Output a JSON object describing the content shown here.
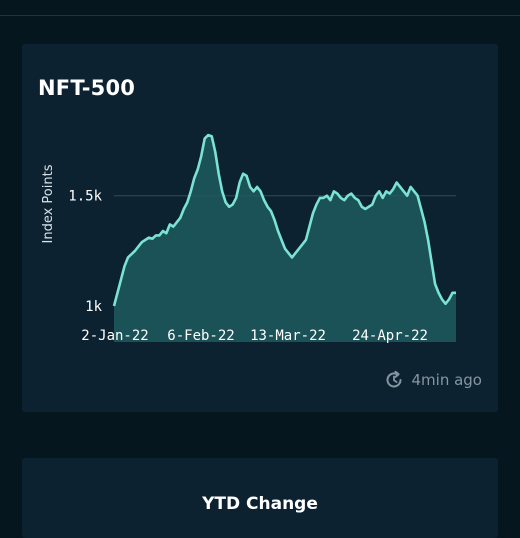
{
  "card": {
    "title": "NFT-500",
    "updated_text": "4min ago",
    "icon": "refresh-clock-icon"
  },
  "ytd_card": {
    "title": "YTD Change"
  },
  "colors": {
    "background": "#06161f",
    "card": "#0c2230",
    "line": "#7be3d6",
    "area": "#1f5a5e",
    "grid": "#294552"
  },
  "chart_data": {
    "type": "area",
    "ylabel": "Index Points",
    "ylim": [
      1000,
      1780
    ],
    "y_ticks": [
      {
        "value": 1000,
        "label": "1k"
      },
      {
        "value": 1500,
        "label": "1.5k"
      }
    ],
    "x_tick_labels": [
      "2-Jan-22",
      "6-Feb-22",
      "13-Mar-22",
      "24-Apr-22"
    ],
    "series": [
      {
        "values": [
          1000,
          1060,
          1120,
          1180,
          1220,
          1235,
          1250,
          1270,
          1290,
          1300,
          1310,
          1305,
          1320,
          1320,
          1340,
          1330,
          1370,
          1360,
          1380,
          1400,
          1440,
          1470,
          1520,
          1580,
          1620,
          1680,
          1760,
          1775,
          1770,
          1700,
          1600,
          1520,
          1470,
          1450,
          1460,
          1490,
          1560,
          1600,
          1590,
          1540,
          1520,
          1540,
          1520,
          1480,
          1450,
          1430,
          1390,
          1340,
          1300,
          1260,
          1240,
          1220,
          1240,
          1260,
          1280,
          1300,
          1360,
          1420,
          1460,
          1490,
          1490,
          1500,
          1480,
          1520,
          1510,
          1490,
          1480,
          1500,
          1510,
          1490,
          1480,
          1450,
          1440,
          1450,
          1460,
          1500,
          1520,
          1490,
          1520,
          1510,
          1530,
          1560,
          1540,
          1520,
          1500,
          1540,
          1520,
          1500,
          1440,
          1380,
          1300,
          1200,
          1100,
          1060,
          1030,
          1010,
          1030,
          1060,
          1060
        ]
      }
    ]
  }
}
